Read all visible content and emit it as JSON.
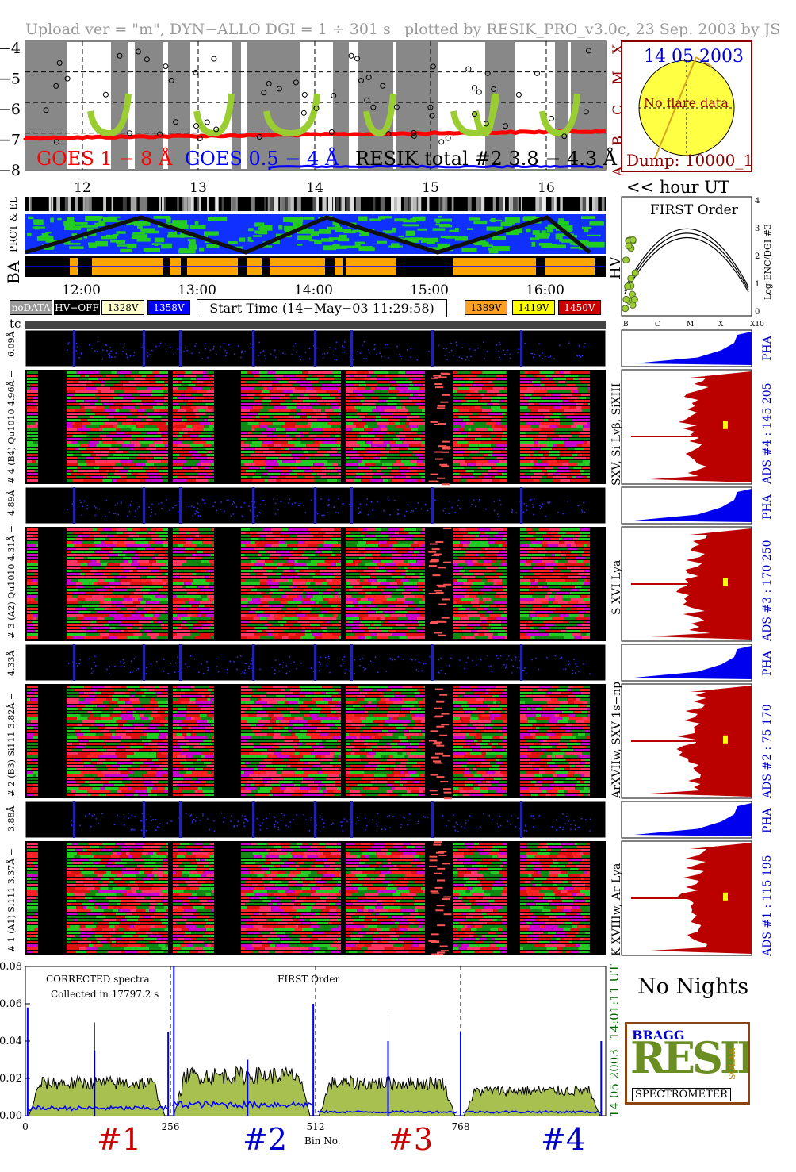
{
  "header": {
    "left": "Upload ver = \"m\", DYN−ALLO DGI =   1 ÷ 301 s",
    "right": "plotted by RESIK_PRO_v3.0c, 23 Sep. 2003 by JS"
  },
  "goes_panel": {
    "y_ticks": [
      "−4",
      "−5",
      "−6",
      "−7",
      "−8"
    ],
    "class_labels": [
      "X",
      "M",
      "C",
      "B",
      "A"
    ],
    "legend_goes18": "GOES 1 − 8 Å",
    "legend_goes054": "GOES 0.5 − 4 Å",
    "legend_resik": "RESIK total #2  3.8 − 4.3 Å",
    "hour_ticks": [
      "12",
      "13",
      "14",
      "15",
      "16"
    ],
    "colors": {
      "goes18": "#ff0000",
      "goes054": "#0000ff",
      "resik": "#000000",
      "fit": "#9acd32",
      "band": "#888888"
    }
  },
  "sun_panel": {
    "date": "14 05 2003",
    "note": "No flare data",
    "dump": "Dump: 10000_1",
    "hour_ut": "<< hour UT"
  },
  "prot_panel": {
    "label_ba": "BA",
    "label_prot": "PROT & EL"
  },
  "first_order_panel": {
    "title": "FIRST Order",
    "ylabel": "Log ENC/DGI #3",
    "hv": "HV",
    "y_ticks": [
      "4",
      "3",
      "2",
      "1",
      "0"
    ],
    "x_ticks": [
      "B",
      "C",
      "M",
      "X",
      "X10"
    ]
  },
  "time_axis": {
    "ticks": [
      "12:00",
      "13:00",
      "14:00",
      "15:00",
      "16:00"
    ]
  },
  "legend_buttons": [
    {
      "label": "noDATA",
      "bg": "#999999",
      "fg": "#ffffff"
    },
    {
      "label": "HV−OFF",
      "bg": "#000000",
      "fg": "#ffffff"
    },
    {
      "label": "1328V",
      "bg": "#ffffcc",
      "fg": "#000000"
    },
    {
      "label": "1358V",
      "bg": "#0000ff",
      "fg": "#ffffff"
    },
    {
      "label": "1389V",
      "bg": "#ffa020",
      "fg": "#000000"
    },
    {
      "label": "1419V",
      "bg": "#ffff00",
      "fg": "#000000"
    },
    {
      "label": "1450V",
      "bg": "#cc0000",
      "fg": "#ffffff"
    }
  ],
  "start_time": "Start Time (14−May−03 11:29:58)",
  "tc_label": "tc",
  "channels": [
    {
      "pha_label": "6.09Å",
      "label": "# 4 (B4) Qu1010  4.96Å −",
      "ads": "ADS #4 :   145 205",
      "lines": "SXV, Si Lyβ, SiXIII",
      "pha": "PHA"
    },
    {
      "pha_label": "4.89Å",
      "label": "# 3 (A2) Qu1010  4.31Å −",
      "ads": "ADS #3 :   170 250",
      "lines": "S XVI Lya",
      "pha": "PHA"
    },
    {
      "pha_label": "4.33Å",
      "label": "# 2 (B3) Si111  3.82Å −",
      "ads": "ADS #2 :   75 170",
      "lines": "ArXVIIw, SXV 1s−np",
      "pha": "PHA"
    },
    {
      "pha_label": "3.88Å",
      "label": "# 1 (A1) Si111  3.37Å −",
      "ads": "ADS #1 :   115 195",
      "lines": "K XVIIIw, Ar Lya",
      "pha": "PHA"
    }
  ],
  "spectrum": {
    "title": "CORRECTED spectra",
    "collected": "Collected in 17797.2 s",
    "first_order": "FIRST Order",
    "time_ut": "14:01:11 UT",
    "date": "14 05 2003",
    "xlabel": "Bin No.",
    "section_labels": [
      {
        "text": "#1",
        "color": "#cc0000"
      },
      {
        "text": "#2",
        "color": "#0000cc"
      },
      {
        "text": "#3",
        "color": "#cc0000"
      },
      {
        "text": "#4",
        "color": "#0000cc"
      }
    ]
  },
  "no_nights": "No Nights",
  "logo": {
    "text": "SPECTROMETER",
    "big": "RESIK",
    "small": "SOLAR",
    "bragg": "BRAGG"
  },
  "chart_data": {
    "type": "line",
    "xlabel": "Bin No.",
    "ylabel": "",
    "x_ticks": [
      0,
      256,
      512,
      768
    ],
    "y_ticks": [
      0.0,
      0.02,
      0.04,
      0.06,
      0.08
    ],
    "xlim": [
      0,
      1024
    ],
    "ylim": [
      0,
      0.08
    ],
    "series": [
      {
        "name": "",
        "color": "#000000",
        "segments": [
          {
            "x0": 0,
            "x1": 256,
            "level": 0.017
          },
          {
            "x0": 256,
            "x1": 512,
            "level": 0.021
          },
          {
            "x0": 512,
            "x1": 768,
            "level": 0.017
          },
          {
            "x0": 768,
            "x1": 1024,
            "level": 0.013
          }
        ]
      },
      {
        "name": "",
        "color": "#0000ff",
        "segments": [
          {
            "x0": 0,
            "x1": 256,
            "level": 0.004
          },
          {
            "x0": 256,
            "x1": 512,
            "level": 0.006
          },
          {
            "x0": 512,
            "x1": 768,
            "level": 0.002
          },
          {
            "x0": 768,
            "x1": 1024,
            "level": 0.002
          }
        ]
      }
    ]
  }
}
